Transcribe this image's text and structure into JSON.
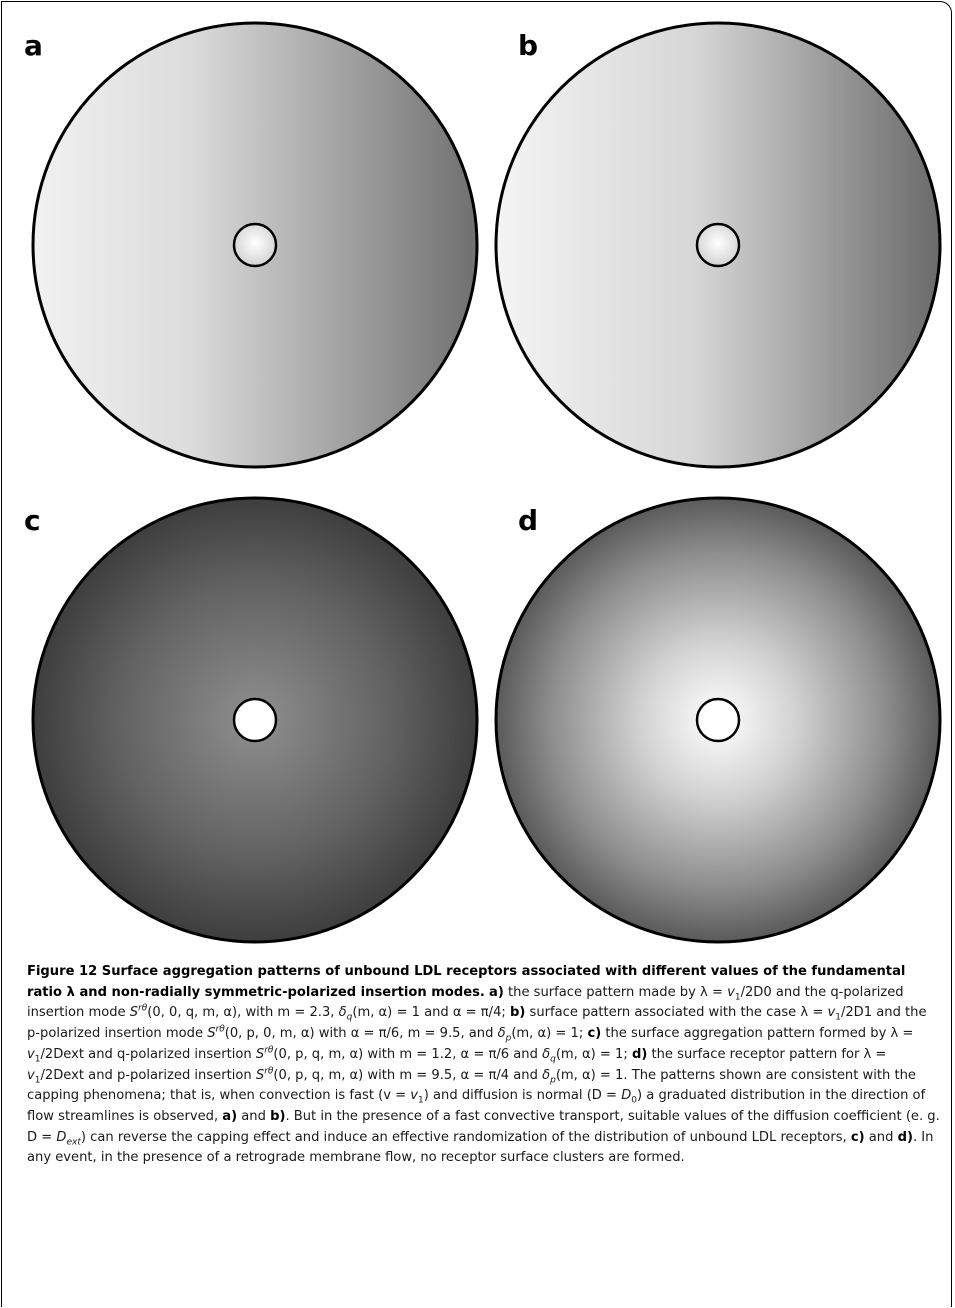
{
  "figure": {
    "panels": [
      {
        "label": "a",
        "gradient": "linear-left-to-right",
        "colors": {
          "light": "#f1f1f1",
          "dark": "#707070"
        }
      },
      {
        "label": "b",
        "gradient": "linear-left-to-right",
        "colors": {
          "light": "#f4f4f4",
          "dark": "#6a6a6a"
        }
      },
      {
        "label": "c",
        "gradient": "radial-center-dark",
        "colors": {
          "center": "#8d8d8d",
          "edge": "#3e3e3e"
        }
      },
      {
        "label": "d",
        "gradient": "radial-center-light",
        "colors": {
          "center": "#ffffff",
          "edge": "#5a5a5a"
        }
      }
    ]
  },
  "caption": {
    "title": "Figure 12 Surface aggregation patterns of unbound LDL receptors associated with different values of the fundamental ratio λ and non-radially symmetric-polarized insertion modes.",
    "text": "a) the surface pattern made by λ = v1/2D0 and the q-polarized insertion mode Srθ(0, 0, q, m, α), with m = 2.3, δq(m, α) = 1 and α = π/4; b) surface pattern associated with the case λ = v1/2D1 and the p-polarized insertion mode Srθ(0, p, 0, m, α) with α = π/6, m = 9.5, and δp(m, α) = 1; c) the surface aggregation pattern formed by λ = v1/2Dext and q-polarized insertion Srθ(0, p, q, m, α) with m = 1.2, α = π/6 and δq(m, α) = 1; d) the surface receptor pattern for λ = v1/2Dext and p-polarized insertion Srθ(0, p, q, m, α) with m = 9.5, α = π/4 and δp(m, α) = 1. The patterns shown are consistent with the capping phenomena; that is, when convection is fast (v = v1) and diffusion is normal (D = D0) a graduated distribution in the direction of flow streamlines is observed, a) and b). But in the presence of a fast convective transport, suitable values of the diffusion coefficient (e. g. D = Dext) can reverse the capping effect and induce an effective randomization of the distribution of unbound LDL receptors, c) and d). In any event, in the presence of a retrograde membrane flow, no receptor surface clusters are formed."
  }
}
